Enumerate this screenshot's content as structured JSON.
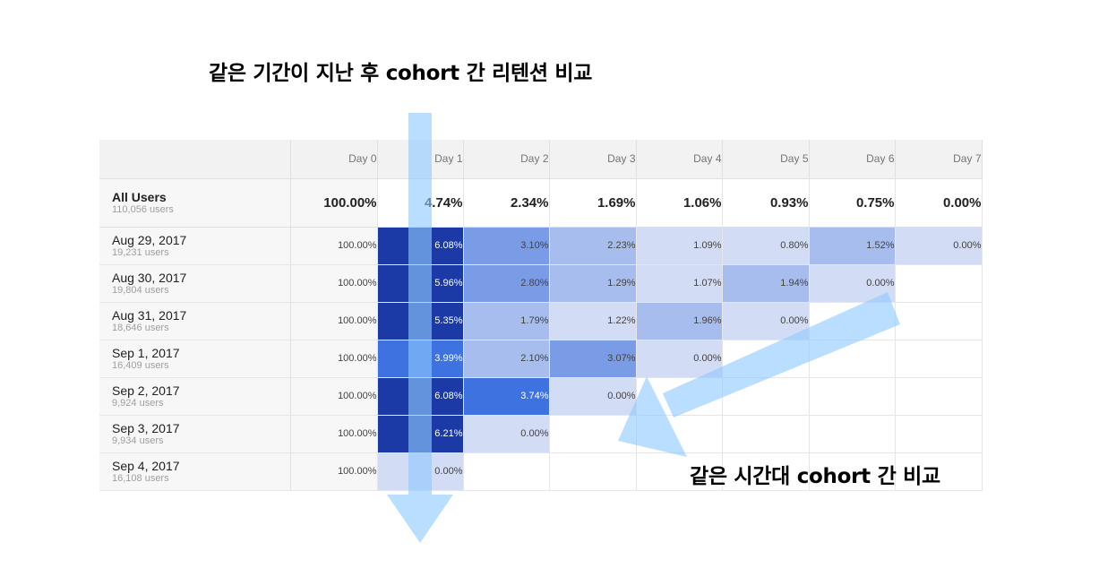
{
  "annotations": {
    "top": "같은 기간이 지난 후 cohort 간 리텐션 비교",
    "right": "같은 시간대 cohort 간 비교"
  },
  "colors": {
    "scale": [
      "#d3dcf5",
      "#a7bdee",
      "#7a9ce6",
      "#3e72e1",
      "#1c3aa6"
    ],
    "arrow": "#8fcaff"
  },
  "table": {
    "columns": [
      "Day 0",
      "Day 1",
      "Day 2",
      "Day 3",
      "Day 4",
      "Day 5",
      "Day 6",
      "Day 7"
    ],
    "total": {
      "label": "All Users",
      "sub": "110,056 users",
      "values": [
        "100.00%",
        "4.74%",
        "2.34%",
        "1.69%",
        "1.06%",
        "0.93%",
        "0.75%",
        "0.00%"
      ]
    },
    "rows": [
      {
        "label": "Aug 29, 2017",
        "sub": "19,231 users",
        "values": [
          "100.00%",
          "6.08%",
          "3.10%",
          "2.23%",
          "1.09%",
          "0.80%",
          "1.52%",
          "0.00%"
        ],
        "levels": [
          0,
          5,
          3,
          2,
          1,
          1,
          2,
          1
        ]
      },
      {
        "label": "Aug 30, 2017",
        "sub": "19,804 users",
        "values": [
          "100.00%",
          "5.96%",
          "2.80%",
          "1.29%",
          "1.07%",
          "1.94%",
          "0.00%",
          ""
        ],
        "levels": [
          0,
          5,
          3,
          2,
          1,
          2,
          1,
          0
        ]
      },
      {
        "label": "Aug 31, 2017",
        "sub": "18,646 users",
        "values": [
          "100.00%",
          "5.35%",
          "1.79%",
          "1.22%",
          "1.96%",
          "0.00%",
          "",
          ""
        ],
        "levels": [
          0,
          5,
          2,
          1,
          2,
          1,
          0,
          0
        ]
      },
      {
        "label": "Sep 1, 2017",
        "sub": "16,409 users",
        "values": [
          "100.00%",
          "3.99%",
          "2.10%",
          "3.07%",
          "0.00%",
          "",
          "",
          ""
        ],
        "levels": [
          0,
          4,
          2,
          3,
          1,
          0,
          0,
          0
        ]
      },
      {
        "label": "Sep 2, 2017",
        "sub": "9,924 users",
        "values": [
          "100.00%",
          "6.08%",
          "3.74%",
          "0.00%",
          "",
          "",
          "",
          ""
        ],
        "levels": [
          0,
          5,
          4,
          1,
          0,
          0,
          0,
          0
        ]
      },
      {
        "label": "Sep 3, 2017",
        "sub": "9,934 users",
        "values": [
          "100.00%",
          "6.21%",
          "0.00%",
          "",
          "",
          "",
          "",
          ""
        ],
        "levels": [
          0,
          5,
          1,
          0,
          0,
          0,
          0,
          0
        ]
      },
      {
        "label": "Sep 4, 2017",
        "sub": "16,108 users",
        "values": [
          "100.00%",
          "0.00%",
          "",
          "",
          "",
          "",
          "",
          ""
        ],
        "levels": [
          0,
          1,
          0,
          0,
          0,
          0,
          0,
          0
        ]
      }
    ]
  }
}
